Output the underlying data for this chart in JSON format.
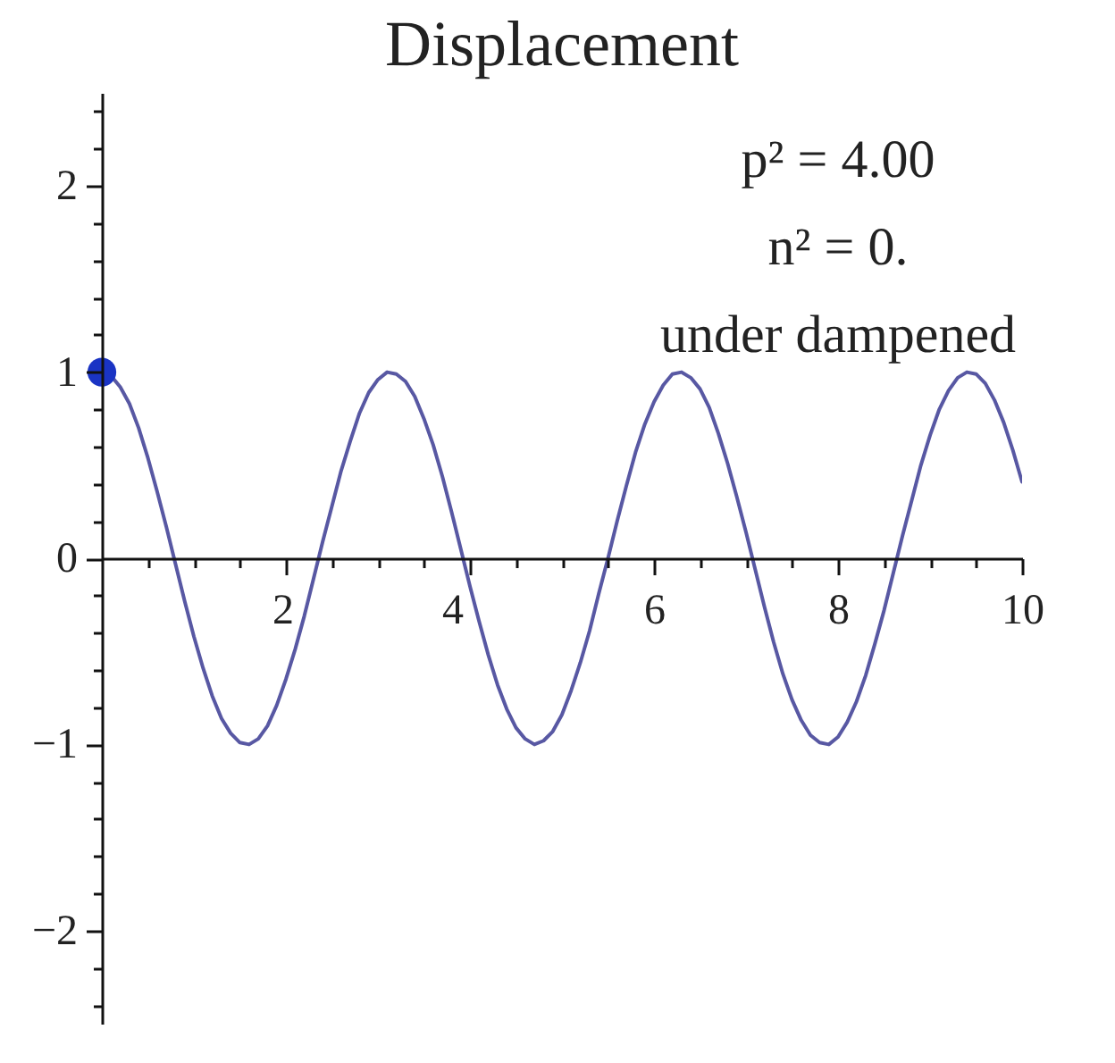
{
  "chart_data": {
    "type": "line",
    "title": "Displacement",
    "annotations": [
      "p² = 4.00",
      "n² = 0.",
      "under dampened"
    ],
    "xlim": [
      0,
      10
    ],
    "ylim": [
      -2.5,
      2.5
    ],
    "xticks": [
      {
        "value": 0.5,
        "label": null
      },
      {
        "value": 1,
        "label": null
      },
      {
        "value": 1.5,
        "label": null
      },
      2,
      {
        "value": 2.5,
        "label": null
      },
      {
        "value": 3,
        "label": null
      },
      {
        "value": 3.5,
        "label": null
      },
      4,
      {
        "value": 4.5,
        "label": null
      },
      {
        "value": 5,
        "label": null
      },
      {
        "value": 5.5,
        "label": null
      },
      6,
      {
        "value": 6.5,
        "label": null
      },
      {
        "value": 7,
        "label": null
      },
      {
        "value": 7.5,
        "label": null
      },
      8,
      {
        "value": 8.5,
        "label": null
      },
      {
        "value": 9,
        "label": null
      },
      {
        "value": 9.5,
        "label": null
      },
      10
    ],
    "yticks": [
      {
        "value": -2.4,
        "label": null
      },
      {
        "value": -2.2,
        "label": null
      },
      -2,
      {
        "value": -1.8,
        "label": null
      },
      {
        "value": -1.6,
        "label": null
      },
      {
        "value": -1.4,
        "label": null
      },
      {
        "value": -1.2,
        "label": null
      },
      -1,
      {
        "value": -0.8,
        "label": null
      },
      {
        "value": -0.6,
        "label": null
      },
      {
        "value": -0.4,
        "label": null
      },
      {
        "value": -0.2,
        "label": null
      },
      0,
      {
        "value": 0.2,
        "label": null
      },
      {
        "value": 0.4,
        "label": null
      },
      {
        "value": 0.6,
        "label": null
      },
      {
        "value": 0.8,
        "label": null
      },
      1,
      {
        "value": 1.2,
        "label": null
      },
      {
        "value": 1.4,
        "label": null
      },
      {
        "value": 1.6,
        "label": null
      },
      {
        "value": 1.8,
        "label": null
      },
      2,
      {
        "value": 2.2,
        "label": null
      },
      {
        "value": 2.4,
        "label": null
      }
    ],
    "series": [
      {
        "type": "line",
        "color": "#5858a3",
        "x": [
          0,
          0.1,
          0.2,
          0.3,
          0.4,
          0.5,
          0.6,
          0.7,
          0.8,
          0.9,
          1.0,
          1.1,
          1.2,
          1.3,
          1.4,
          1.5,
          1.6,
          1.7,
          1.8,
          1.9,
          2.0,
          2.1,
          2.2,
          2.3,
          2.4,
          2.5,
          2.6,
          2.7,
          2.8,
          2.9,
          3.0,
          3.1,
          3.2,
          3.3,
          3.4,
          3.5,
          3.6,
          3.7,
          3.8,
          3.9,
          4.0,
          4.1,
          4.2,
          4.3,
          4.4,
          4.5,
          4.6,
          4.7,
          4.8,
          4.9,
          5.0,
          5.1,
          5.2,
          5.3,
          5.4,
          5.5,
          5.6,
          5.7,
          5.8,
          5.9,
          6.0,
          6.1,
          6.2,
          6.3,
          6.4,
          6.5,
          6.6,
          6.7,
          6.8,
          6.9,
          7.0,
          7.1,
          7.2,
          7.3,
          7.4,
          7.5,
          7.6,
          7.7,
          7.8,
          7.9,
          8.0,
          8.1,
          8.2,
          8.3,
          8.4,
          8.5,
          8.6,
          8.7,
          8.8,
          8.9,
          9.0,
          9.1,
          9.2,
          9.3,
          9.4,
          9.5,
          9.6,
          9.7,
          9.8,
          9.9,
          10.0
        ],
        "values": [
          1.0,
          0.98,
          0.92,
          0.83,
          0.7,
          0.54,
          0.36,
          0.17,
          -0.03,
          -0.23,
          -0.42,
          -0.59,
          -0.74,
          -0.86,
          -0.94,
          -0.99,
          -1.0,
          -0.97,
          -0.9,
          -0.79,
          -0.65,
          -0.49,
          -0.31,
          -0.11,
          0.09,
          0.28,
          0.47,
          0.63,
          0.78,
          0.89,
          0.96,
          1.0,
          0.99,
          0.95,
          0.87,
          0.75,
          0.61,
          0.44,
          0.25,
          0.05,
          -0.15,
          -0.34,
          -0.52,
          -0.68,
          -0.81,
          -0.91,
          -0.97,
          -1.0,
          -0.98,
          -0.93,
          -0.84,
          -0.71,
          -0.56,
          -0.39,
          -0.19,
          0.0,
          0.2,
          0.39,
          0.57,
          0.72,
          0.84,
          0.93,
          0.99,
          1.0,
          0.97,
          0.91,
          0.81,
          0.67,
          0.51,
          0.33,
          0.14,
          -0.06,
          -0.26,
          -0.45,
          -0.62,
          -0.76,
          -0.87,
          -0.95,
          -0.99,
          -1.0,
          -0.96,
          -0.88,
          -0.77,
          -0.63,
          -0.46,
          -0.28,
          -0.08,
          0.12,
          0.31,
          0.5,
          0.66,
          0.8,
          0.9,
          0.97,
          1.0,
          0.99,
          0.94,
          0.85,
          0.73,
          0.58,
          0.41
        ]
      },
      {
        "type": "scatter",
        "color": "#1a34c4",
        "marker": "circle",
        "x": [
          0
        ],
        "values": [
          1
        ]
      }
    ]
  }
}
